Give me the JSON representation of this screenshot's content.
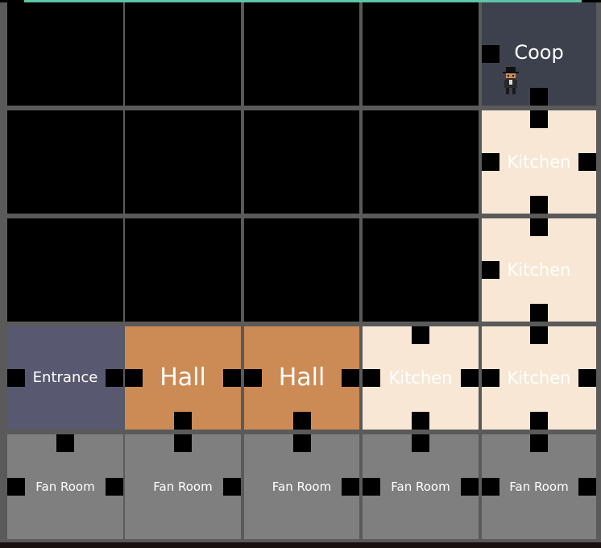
{
  "colors": {
    "empty": "#000000",
    "coop": "#3d414d",
    "kitchen": "#f7e7d4",
    "hall": "#cc8a55",
    "entrance": "#585870",
    "fan_room": "#7f7f7f",
    "grid_line": "#5a5a5a",
    "label": "#ffffff"
  },
  "map": {
    "rows": [
      [
        {
          "room": null
        },
        {
          "room": null
        },
        {
          "room": null
        },
        {
          "room": null
        },
        {
          "room": "Coop",
          "type": "coop",
          "doors": [
            "left",
            "bottom"
          ],
          "player": true
        }
      ],
      [
        {
          "room": null
        },
        {
          "room": null
        },
        {
          "room": null
        },
        {
          "room": null
        },
        {
          "room": "Kitchen",
          "type": "kitchen",
          "doors": [
            "top",
            "left",
            "right",
            "bottom"
          ]
        }
      ],
      [
        {
          "room": null
        },
        {
          "room": null
        },
        {
          "room": null
        },
        {
          "room": null
        },
        {
          "room": "Kitchen",
          "type": "kitchen",
          "doors": [
            "top",
            "left",
            "bottom"
          ]
        }
      ],
      [
        {
          "room": "Entrance",
          "type": "entrance",
          "doors": [
            "left",
            "right"
          ]
        },
        {
          "room": "Hall",
          "type": "hall",
          "doors": [
            "left",
            "right",
            "bottom"
          ]
        },
        {
          "room": "Hall",
          "type": "hall",
          "doors": [
            "left",
            "right",
            "bottom"
          ]
        },
        {
          "room": "Kitchen",
          "type": "kitchen",
          "doors": [
            "top",
            "left",
            "right",
            "bottom"
          ]
        },
        {
          "room": "Kitchen",
          "type": "kitchen",
          "doors": [
            "top",
            "left",
            "right",
            "bottom"
          ]
        }
      ],
      [
        {
          "room": "Fan Room",
          "type": "fan_room",
          "doors": [
            "top",
            "left",
            "right"
          ]
        },
        {
          "room": "Fan Room",
          "type": "fan_room",
          "doors": [
            "top",
            "right"
          ]
        },
        {
          "room": "Fan Room",
          "type": "fan_room",
          "doors": [
            "top",
            "right"
          ]
        },
        {
          "room": "Fan Room",
          "type": "fan_room",
          "doors": [
            "top",
            "left",
            "right"
          ]
        },
        {
          "room": "Fan Room",
          "type": "fan_room",
          "doors": [
            "top",
            "left",
            "right"
          ]
        }
      ]
    ]
  },
  "player": {
    "icon": "top-hat-character-icon"
  }
}
